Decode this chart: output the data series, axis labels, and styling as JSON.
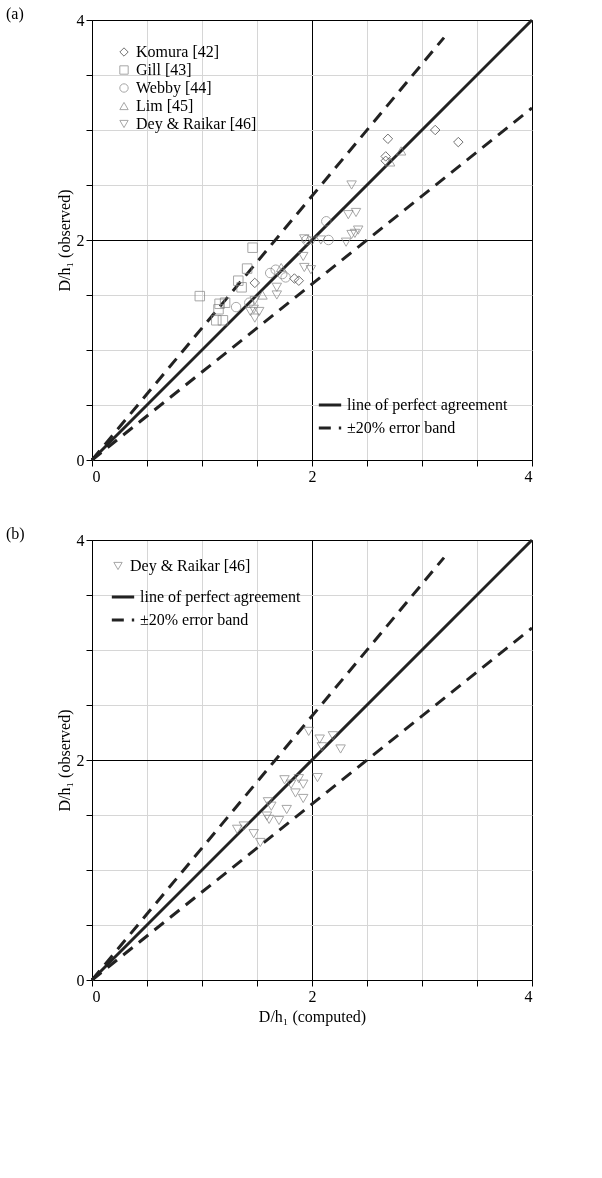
{
  "chart_data": [
    {
      "type": "scatter",
      "title": "(a)",
      "ylabel": "D/h₁ (observed)",
      "xlim": [
        0,
        4
      ],
      "ylim": [
        0,
        4
      ],
      "xticks": [
        0,
        {
          "value": 0.5,
          "label": null
        },
        {
          "value": 1,
          "label": null
        },
        {
          "value": 1.5,
          "label": null
        },
        2,
        {
          "value": 2.5,
          "label": null
        },
        {
          "value": 3,
          "label": null
        },
        {
          "value": 3.5,
          "label": null
        },
        4
      ],
      "yticks": [
        0,
        {
          "value": 0.5,
          "label": null
        },
        {
          "value": 1,
          "label": null
        },
        {
          "value": 1.5,
          "label": null
        },
        2,
        {
          "value": 2.5,
          "label": null
        },
        {
          "value": 3,
          "label": null
        },
        {
          "value": 3.5,
          "label": null
        },
        4
      ],
      "grid": true,
      "legend": "top left",
      "series": [
        {
          "name": "Komura [42]",
          "marker": "diamond",
          "color": "#333333",
          "x": [
            2.69,
            3.12,
            3.33,
            2.67,
            2.67,
            1.48,
            1.84,
            1.88
          ],
          "values": [
            2.92,
            3.0,
            2.89,
            2.76,
            2.72,
            1.61,
            1.65,
            1.63
          ]
        },
        {
          "name": "Gill [43]",
          "marker": "square",
          "color": "#808080",
          "x": [
            1.46,
            0.98,
            1.41,
            1.33,
            1.36,
            1.15,
            1.13,
            1.21,
            1.19,
            1.16
          ],
          "values": [
            1.93,
            1.49,
            1.74,
            1.63,
            1.57,
            1.37,
            1.27,
            1.43,
            1.27,
            1.42
          ]
        },
        {
          "name": "Webby [44]",
          "marker": "circle",
          "color": "#808080",
          "x": [
            2.13,
            2.15,
            1.67,
            1.73,
            1.62,
            1.76,
            1.31,
            1.43,
            1.95
          ],
          "values": [
            2.17,
            2.0,
            1.73,
            1.69,
            1.7,
            1.66,
            1.39,
            1.43,
            2.0
          ]
        },
        {
          "name": "Lim [45]",
          "marker": "triangle",
          "color": "#808080",
          "x": [
            2.81,
            2.71,
            1.55,
            1.72
          ],
          "values": [
            2.81,
            2.71,
            1.5,
            1.75
          ]
        },
        {
          "name": "Dey & Raikar [46]",
          "marker": "triangle-down",
          "color": "#808080",
          "x": [
            1.93,
            2.0,
            2.31,
            2.36,
            1.93,
            1.99,
            1.68,
            1.68,
            1.48,
            1.47,
            1.48,
            1.44,
            1.52,
            1.92,
            2.36,
            2.33,
            2.4,
            2.42,
            2.39,
            2.08
          ],
          "values": [
            2.01,
            1.99,
            1.98,
            2.05,
            1.75,
            1.73,
            1.57,
            1.5,
            1.45,
            1.37,
            1.29,
            1.35,
            1.35,
            1.85,
            2.5,
            2.23,
            2.25,
            2.09,
            2.06,
            2.0
          ]
        },
        {
          "name": "line of perfect agreement",
          "type": "line",
          "line_style": "solid",
          "color": "#222222",
          "x": [
            0,
            4
          ],
          "values": [
            0,
            4
          ]
        },
        {
          "name": "±20% error band",
          "type": "line",
          "line_style": "dashed",
          "color": "#222222",
          "x": [
            0,
            3.2
          ],
          "values": [
            0,
            3.84
          ]
        },
        {
          "type": "line",
          "line_style": "dashed",
          "color": "#222222",
          "x": [
            0,
            4
          ],
          "values": [
            0,
            3.2
          ]
        }
      ]
    },
    {
      "type": "scatter",
      "title": "(b)",
      "xlabel": "D/h₁ (computed)",
      "ylabel": "D/h₁ (observed)",
      "xlim": [
        0,
        4
      ],
      "ylim": [
        0,
        4
      ],
      "xticks": [
        0,
        {
          "value": 0.5,
          "label": null
        },
        {
          "value": 1,
          "label": null
        },
        {
          "value": 1.5,
          "label": null
        },
        2,
        {
          "value": 2.5,
          "label": null
        },
        {
          "value": 3,
          "label": null
        },
        {
          "value": 3.5,
          "label": null
        },
        4
      ],
      "yticks": [
        0,
        {
          "value": 0.5,
          "label": null
        },
        {
          "value": 1,
          "label": null
        },
        {
          "value": 1.5,
          "label": null
        },
        2,
        {
          "value": 2.5,
          "label": null
        },
        {
          "value": 3,
          "label": null
        },
        {
          "value": 3.5,
          "label": null
        },
        4
      ],
      "grid": true,
      "legend": "top left",
      "series": [
        {
          "name": "Dey & Raikar [46]",
          "marker": "triangle-down",
          "color": "#808080",
          "x": [
            1.97,
            2.07,
            2.09,
            2.19,
            2.26,
            2.05,
            1.75,
            1.81,
            1.88,
            1.92,
            1.85,
            1.92,
            1.77,
            1.59,
            1.61,
            1.7,
            1.32,
            1.38,
            1.47,
            1.53,
            1.63,
            1.6
          ],
          "values": [
            2.26,
            2.19,
            2.12,
            2.22,
            2.1,
            1.84,
            1.82,
            1.78,
            1.83,
            1.78,
            1.7,
            1.65,
            1.55,
            1.49,
            1.46,
            1.45,
            1.37,
            1.4,
            1.33,
            1.25,
            1.58,
            1.62
          ]
        },
        {
          "name": "line of perfect agreement",
          "type": "line",
          "line_style": "solid",
          "color": "#222222",
          "x": [
            0,
            4
          ],
          "values": [
            0,
            4
          ]
        },
        {
          "name": "±20% error band",
          "type": "line",
          "line_style": "dashed",
          "color": "#222222",
          "x": [
            0,
            3.2
          ],
          "values": [
            0,
            3.84
          ]
        },
        {
          "type": "line",
          "line_style": "dashed",
          "color": "#222222",
          "x": [
            0,
            4
          ],
          "values": [
            0,
            3.2
          ]
        }
      ]
    }
  ]
}
